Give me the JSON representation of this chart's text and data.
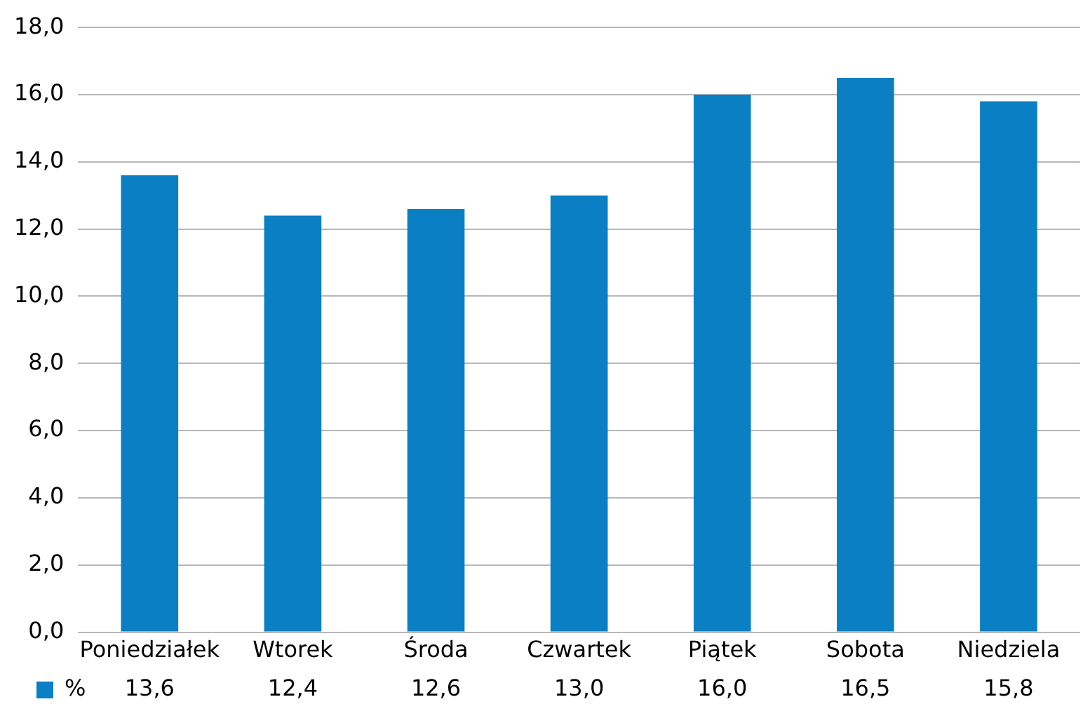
{
  "chart_data": {
    "type": "bar",
    "categories": [
      "Poniedziałek",
      "Wtorek",
      "Środa",
      "Czwartek",
      "Piątek",
      "Sobota",
      "Niedziela"
    ],
    "series": [
      {
        "name": "%",
        "color": "#0a7fc4",
        "values": [
          13.6,
          12.4,
          12.6,
          13.0,
          16.0,
          16.5,
          15.8
        ],
        "value_labels": [
          "13,6",
          "12,4",
          "12,6",
          "13,0",
          "16,0",
          "16,5",
          "15,8"
        ]
      }
    ],
    "ylim": [
      0,
      18
    ],
    "yticks": [
      {
        "value": 0,
        "label": "0,0"
      },
      {
        "value": 2,
        "label": "2,0"
      },
      {
        "value": 4,
        "label": "4,0"
      },
      {
        "value": 6,
        "label": "6,0"
      },
      {
        "value": 8,
        "label": "8,0"
      },
      {
        "value": 10,
        "label": "10,0"
      },
      {
        "value": 12,
        "label": "12,0"
      },
      {
        "value": 14,
        "label": "14,0"
      },
      {
        "value": 16,
        "label": "16,0"
      },
      {
        "value": 18,
        "label": "18,0"
      }
    ],
    "grid": "y",
    "legend": "bottom left"
  }
}
